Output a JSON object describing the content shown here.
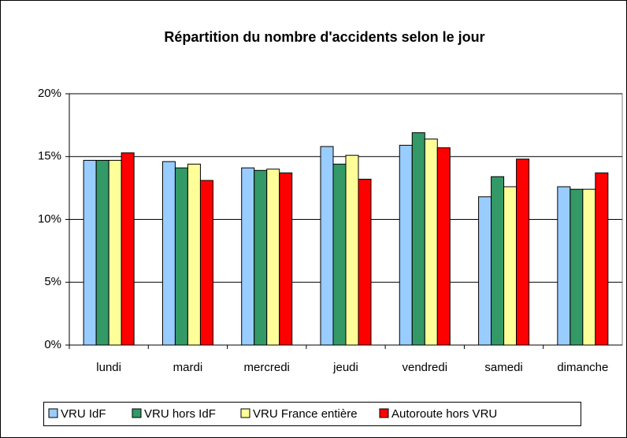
{
  "chart_data": {
    "type": "bar",
    "title": "Répartition du nombre d'accidents selon le jour",
    "categories": [
      "lundi",
      "mardi",
      "mercredi",
      "jeudi",
      "vendredi",
      "samedi",
      "dimanche"
    ],
    "series": [
      {
        "name": "VRU IdF",
        "color": "#99ccff",
        "values": [
          14.7,
          14.6,
          14.1,
          15.8,
          15.9,
          11.8,
          12.6
        ]
      },
      {
        "name": "VRU hors IdF",
        "color": "#339966",
        "values": [
          14.7,
          14.1,
          13.9,
          14.4,
          16.9,
          13.4,
          12.4
        ]
      },
      {
        "name": "VRU France entière",
        "color": "#ffff99",
        "values": [
          14.7,
          14.4,
          14.0,
          15.1,
          16.4,
          12.6,
          12.4
        ]
      },
      {
        "name": "Autoroute hors VRU",
        "color": "#ff0000",
        "values": [
          15.3,
          13.1,
          13.7,
          13.2,
          15.7,
          14.8,
          13.7
        ]
      }
    ],
    "ylim": [
      0,
      20
    ],
    "yticks": [
      {
        "value": 0,
        "label": "0%"
      },
      {
        "value": 5,
        "label": "5%"
      },
      {
        "value": 10,
        "label": "10%"
      },
      {
        "value": 15,
        "label": "15%"
      },
      {
        "value": 20,
        "label": "20%"
      }
    ],
    "grid": true,
    "legend": "bottom"
  }
}
